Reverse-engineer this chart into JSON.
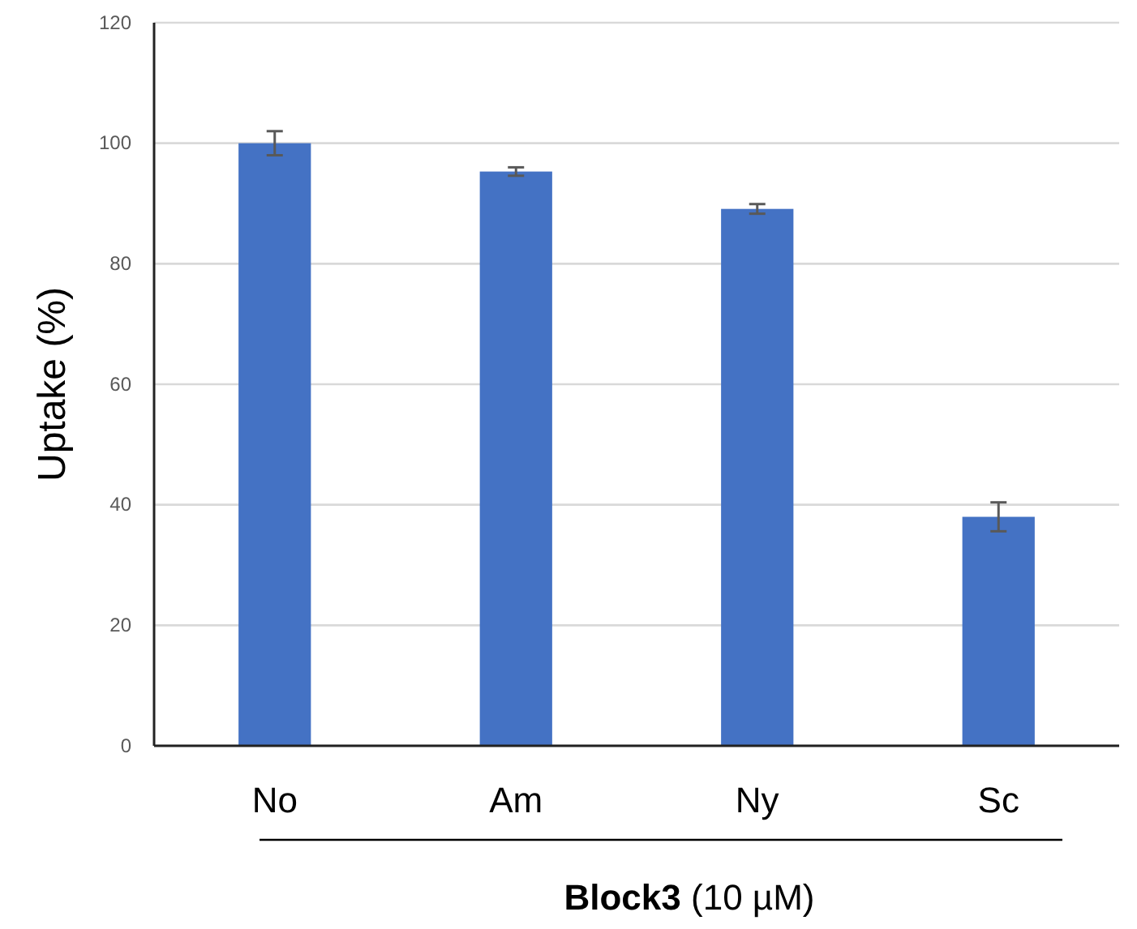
{
  "chart_data": {
    "type": "bar",
    "xlabel": "Block3 (10 µM)",
    "ylabel": "Uptake (%)",
    "categories": [
      "No",
      "Am",
      "Ny",
      "Sc"
    ],
    "values": [
      100,
      95.3,
      89.1,
      38
    ],
    "errors": [
      2,
      0.7,
      0.8,
      2.4
    ],
    "color": "#4472c4",
    "ylim": [
      0,
      120
    ],
    "yticks": [
      0,
      20,
      40,
      60,
      80,
      100,
      120
    ],
    "grid": "y"
  }
}
